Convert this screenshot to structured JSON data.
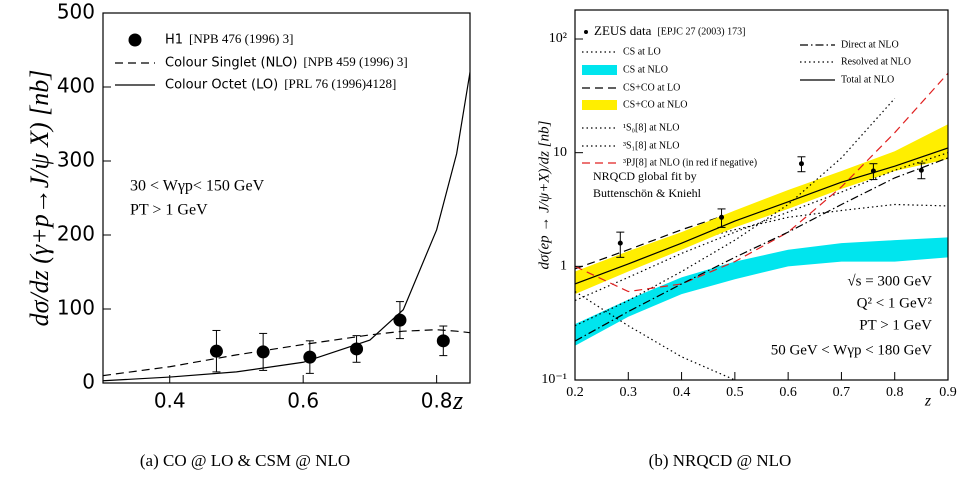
{
  "chart_data": [
    {
      "type": "line",
      "caption": "(a) CO @ LO & CSM @ NLO",
      "y_label": "dσ/dz (γ+p→J/ψ X) [nb]",
      "x_label": "z",
      "xlim": [
        0.3,
        0.85
      ],
      "xticks": [
        0.4,
        0.6,
        0.8
      ],
      "ylim": [
        0,
        500
      ],
      "yticks": [
        0,
        100,
        200,
        300,
        400,
        500
      ],
      "log_y": false,
      "annotations": [
        "30 < Wγp< 150 GeV",
        "PT > 1 GeV"
      ],
      "series": [
        {
          "name": "H1",
          "reference": "[NPB 476 (1996) 3]",
          "style": "points",
          "color": "#000000",
          "x": [
            0.47,
            0.54,
            0.61,
            0.68,
            0.745,
            0.81
          ],
          "values": [
            43,
            42,
            35,
            46,
            85,
            57
          ],
          "errors": [
            28,
            25,
            22,
            18,
            25,
            20
          ]
        },
        {
          "name": "Colour Singlet (NLO)",
          "reference": "[NPB 459 (1996) 3]",
          "style": "dashed",
          "color": "#000000",
          "x": [
            0.3,
            0.4,
            0.5,
            0.6,
            0.7,
            0.75,
            0.8,
            0.83,
            0.85
          ],
          "values": [
            10,
            22,
            38,
            52,
            65,
            70,
            72,
            70,
            68
          ]
        },
        {
          "name": "Colour Octet (LO)",
          "reference": "[PRL 76 (1996)4128]",
          "style": "solid",
          "color": "#000000",
          "x": [
            0.3,
            0.4,
            0.5,
            0.6,
            0.7,
            0.75,
            0.8,
            0.83,
            0.85
          ],
          "values": [
            3,
            8,
            15,
            28,
            58,
            99,
            207,
            310,
            420
          ]
        }
      ]
    },
    {
      "type": "line",
      "caption": "(b) NRQCD @ NLO",
      "y_label": "dσ(ep → J/ψ+X)/dz [nb]",
      "x_label": "z",
      "xlim": [
        0.2,
        0.9
      ],
      "xticks": [
        0.2,
        0.3,
        0.4,
        0.5,
        0.6,
        0.7,
        0.8,
        0.9
      ],
      "ylim": [
        0.1,
        180
      ],
      "yticks": [
        {
          "value": 0.1,
          "label": "10⁻¹"
        },
        1,
        10,
        {
          "value": 100,
          "label": "10²"
        }
      ],
      "log_y": true,
      "annotations": [
        "NRQCD global fit by",
        "Buttenschön & Kniehl",
        "√s = 300 GeV",
        "Q² < 1 GeV²",
        "PT > 1 GeV",
        "50 GeV < Wγp < 180 GeV"
      ],
      "series": [
        {
          "name": "ZEUS data",
          "reference": "[EPJC 27 (2003) 173]",
          "style": "points",
          "color": "#000000",
          "x": [
            0.285,
            0.475,
            0.625,
            0.76,
            0.85
          ],
          "values": [
            1.6,
            2.7,
            8,
            6.9,
            7
          ],
          "errors": [
            0.4,
            0.5,
            1.2,
            1.1,
            1.1
          ]
        },
        {
          "name": "CS at LO",
          "style": "dotted",
          "color": "#000000",
          "x": [
            0.2,
            0.3,
            0.4,
            0.5,
            0.6,
            0.7,
            0.8,
            0.9
          ],
          "values": [
            0.8,
            1.1,
            1.6,
            2.1,
            2.7,
            3.1,
            3.5,
            3.4
          ]
        },
        {
          "name": "CS at NLO",
          "style": "band",
          "color": "#00e5ee",
          "x": [
            0.2,
            0.3,
            0.4,
            0.5,
            0.6,
            0.7,
            0.8,
            0.9
          ],
          "low": [
            0.2,
            0.36,
            0.57,
            0.77,
            1.0,
            1.1,
            1.1,
            1.2
          ],
          "high": [
            0.31,
            0.51,
            0.8,
            1.1,
            1.4,
            1.6,
            1.7,
            1.8
          ]
        },
        {
          "name": "CS+CO at LO",
          "style": "dashed",
          "color": "#000000",
          "x": [
            0.2,
            0.3,
            0.4,
            0.5,
            0.6,
            0.7,
            0.8,
            0.9
          ],
          "values": [
            0.95,
            1.4,
            2.1,
            3.0,
            4.2,
            5.8,
            8.0,
            11
          ]
        },
        {
          "name": "CS+CO at NLO",
          "style": "band",
          "color": "#ffee00",
          "x": [
            0.2,
            0.3,
            0.4,
            0.5,
            0.6,
            0.7,
            0.8,
            0.9
          ],
          "low": [
            0.57,
            0.9,
            1.4,
            2.2,
            3.2,
            4.8,
            6.9,
            8.8
          ],
          "high": [
            0.9,
            1.36,
            2.0,
            3.1,
            4.7,
            6.9,
            10.3,
            17.8
          ]
        },
        {
          "name": "¹S₀[8] at NLO",
          "style": "dotted",
          "color": "#000000",
          "x": [
            0.2,
            0.3,
            0.4,
            0.5,
            0.6,
            0.7,
            0.8,
            0.9
          ],
          "values": [
            0.3,
            0.5,
            0.9,
            1.7,
            3.5,
            9,
            30,
            null
          ]
        },
        {
          "name": "³S₁[8] at NLO",
          "style": "dotted",
          "color": "#000000",
          "x": [
            0.2,
            0.3,
            0.4,
            0.5,
            0.6,
            0.7,
            0.8,
            0.9
          ],
          "values": [
            0.5,
            0.8,
            1.3,
            2.0,
            3.0,
            4.5,
            7,
            10
          ]
        },
        {
          "name": "³PJ[8] at NLO (in red if negative)",
          "style": "dashed",
          "color": "#e02020",
          "x": [
            0.2,
            0.3,
            0.4,
            0.5,
            0.6,
            0.7,
            0.8,
            0.9
          ],
          "values": [
            1.0,
            0.6,
            0.7,
            1.1,
            2.0,
            5,
            15,
            50
          ]
        },
        {
          "name": "Direct at NLO",
          "style": "dashdot",
          "color": "#000000",
          "x": [
            0.2,
            0.3,
            0.4,
            0.5,
            0.6,
            0.7,
            0.8,
            0.9
          ],
          "values": [
            0.22,
            0.4,
            0.7,
            1.2,
            2.0,
            3.5,
            6,
            9
          ]
        },
        {
          "name": "Resolved at NLO",
          "style": "dotted",
          "color": "#000000",
          "x": [
            0.2,
            0.3,
            0.4,
            0.5,
            0.6,
            0.7,
            0.8,
            0.9
          ],
          "values": [
            0.6,
            0.3,
            0.16,
            0.1,
            null,
            null,
            null,
            null
          ]
        },
        {
          "name": "Total at NLO",
          "style": "solid",
          "color": "#000000",
          "x": [
            0.2,
            0.3,
            0.4,
            0.5,
            0.6,
            0.7,
            0.8,
            0.9
          ],
          "values": [
            0.7,
            1.05,
            1.6,
            2.5,
            3.7,
            5.5,
            7.6,
            11
          ]
        }
      ]
    }
  ]
}
